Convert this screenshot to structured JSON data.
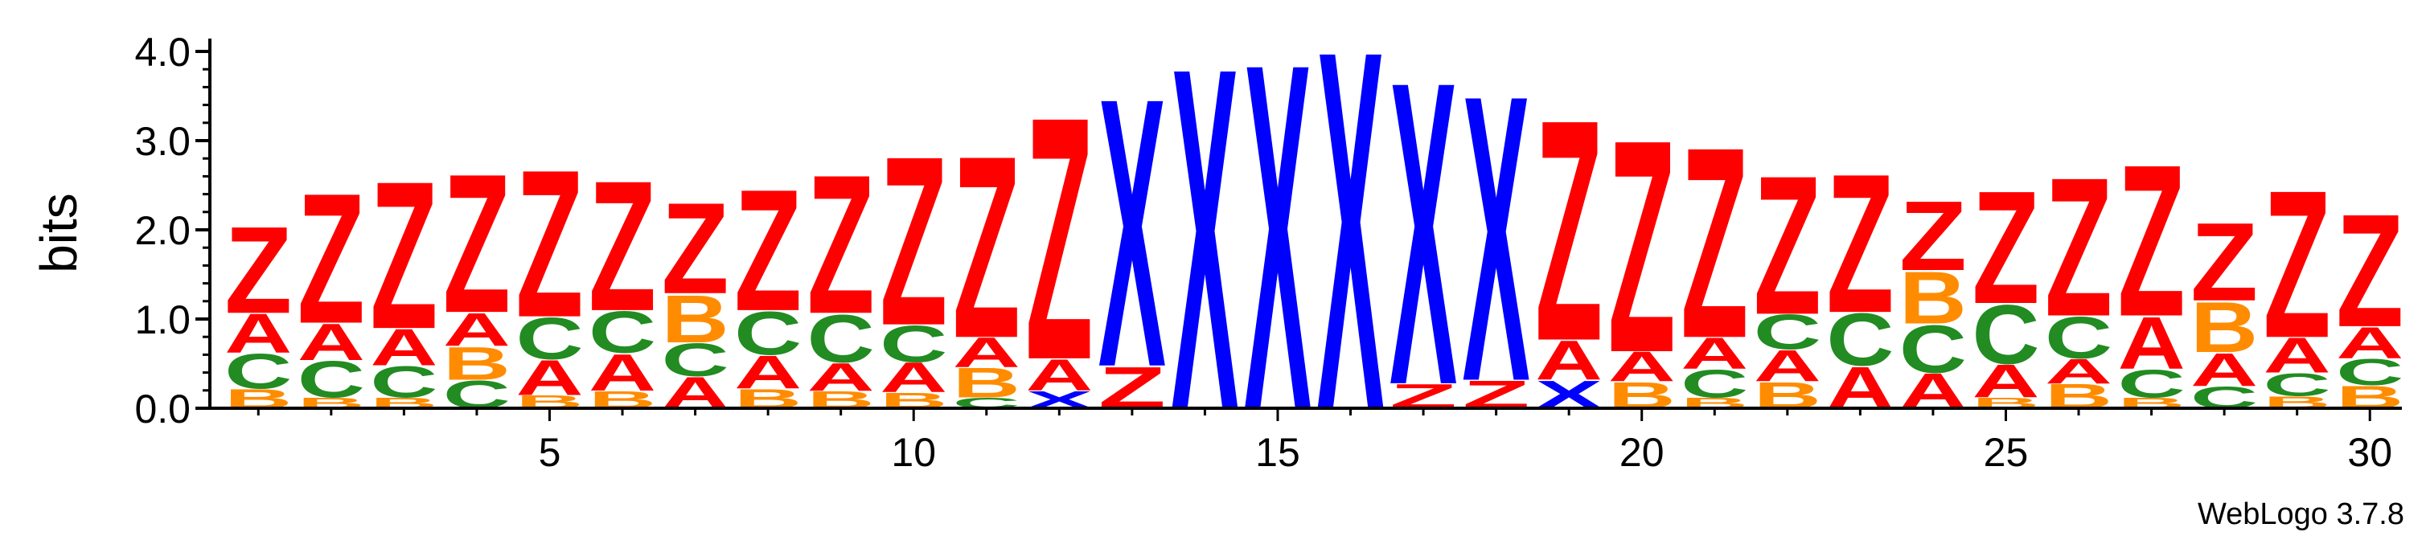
{
  "chart_data": {
    "type": "sequence-logo",
    "ylabel": "bits",
    "ylim": [
      0,
      4.0
    ],
    "y_ticks": [
      "0.0",
      "1.0",
      "2.0",
      "3.0",
      "4.0"
    ],
    "x_ticks": [
      "5",
      "10",
      "15",
      "20",
      "25",
      "30"
    ],
    "x_tick_positions": [
      5,
      10,
      15,
      20,
      25,
      30
    ],
    "credit": "WebLogo 3.7.8",
    "colors": {
      "Z": "#ff0000",
      "A": "#ff0000",
      "C": "#228b22",
      "B": "#ff8c00",
      "X": "#0000ff"
    },
    "positions": [
      {
        "pos": 1,
        "stack": [
          [
            "B",
            0.22
          ],
          [
            "C",
            0.4
          ],
          [
            "A",
            0.45
          ],
          [
            "Z",
            1.0
          ]
        ]
      },
      {
        "pos": 2,
        "stack": [
          [
            "B",
            0.12
          ],
          [
            "C",
            0.42
          ],
          [
            "A",
            0.42
          ],
          [
            "Z",
            1.5
          ]
        ]
      },
      {
        "pos": 3,
        "stack": [
          [
            "B",
            0.12
          ],
          [
            "C",
            0.36
          ],
          [
            "A",
            0.42
          ],
          [
            "Z",
            1.7
          ]
        ]
      },
      {
        "pos": 4,
        "stack": [
          [
            "C",
            0.32
          ],
          [
            "B",
            0.38
          ],
          [
            "A",
            0.38
          ],
          [
            "Z",
            1.6
          ]
        ]
      },
      {
        "pos": 5,
        "stack": [
          [
            "B",
            0.15
          ],
          [
            "A",
            0.4
          ],
          [
            "C",
            0.48
          ],
          [
            "Z",
            1.7
          ]
        ]
      },
      {
        "pos": 6,
        "stack": [
          [
            "B",
            0.2
          ],
          [
            "A",
            0.42
          ],
          [
            "C",
            0.48
          ],
          [
            "Z",
            1.5
          ]
        ]
      },
      {
        "pos": 7,
        "stack": [
          [
            "A",
            0.36
          ],
          [
            "C",
            0.38
          ],
          [
            "B",
            0.55
          ],
          [
            "Z",
            1.05
          ]
        ]
      },
      {
        "pos": 8,
        "stack": [
          [
            "B",
            0.22
          ],
          [
            "A",
            0.38
          ],
          [
            "C",
            0.5
          ],
          [
            "Z",
            1.4
          ]
        ]
      },
      {
        "pos": 9,
        "stack": [
          [
            "B",
            0.2
          ],
          [
            "A",
            0.32
          ],
          [
            "C",
            0.55
          ],
          [
            "Z",
            1.6
          ]
        ]
      },
      {
        "pos": 10,
        "stack": [
          [
            "B",
            0.18
          ],
          [
            "A",
            0.34
          ],
          [
            "C",
            0.42
          ],
          [
            "Z",
            1.95
          ]
        ]
      },
      {
        "pos": 11,
        "stack": [
          [
            "C",
            0.12
          ],
          [
            "B",
            0.34
          ],
          [
            "A",
            0.34
          ],
          [
            "Z",
            2.1
          ]
        ]
      },
      {
        "pos": 12,
        "stack": [
          [
            "X",
            0.2
          ],
          [
            "A",
            0.36
          ],
          [
            "Z",
            2.8
          ]
        ]
      },
      {
        "pos": 13,
        "stack": [
          [
            "Z",
            0.48
          ],
          [
            "X",
            3.1
          ]
        ]
      },
      {
        "pos": 14,
        "stack": [
          [
            "X",
            3.95
          ]
        ]
      },
      {
        "pos": 15,
        "stack": [
          [
            "X",
            4.0
          ]
        ]
      },
      {
        "pos": 16,
        "stack": [
          [
            "X",
            4.15
          ]
        ]
      },
      {
        "pos": 17,
        "stack": [
          [
            "Z",
            0.28
          ],
          [
            "X",
            3.5
          ]
        ]
      },
      {
        "pos": 18,
        "stack": [
          [
            "Z",
            0.32
          ],
          [
            "X",
            3.3
          ]
        ]
      },
      {
        "pos": 19,
        "stack": [
          [
            "X",
            0.32
          ],
          [
            "A",
            0.45
          ],
          [
            "Z",
            2.55
          ]
        ]
      },
      {
        "pos": 20,
        "stack": [
          [
            "B",
            0.3
          ],
          [
            "A",
            0.34
          ],
          [
            "Z",
            2.45
          ]
        ]
      },
      {
        "pos": 21,
        "stack": [
          [
            "B",
            0.12
          ],
          [
            "C",
            0.32
          ],
          [
            "A",
            0.36
          ],
          [
            "Z",
            2.2
          ]
        ]
      },
      {
        "pos": 22,
        "stack": [
          [
            "B",
            0.3
          ],
          [
            "A",
            0.36
          ],
          [
            "C",
            0.4
          ],
          [
            "Z",
            1.6
          ]
        ]
      },
      {
        "pos": 23,
        "stack": [
          [
            "A",
            0.48
          ],
          [
            "C",
            0.6
          ],
          [
            "Z",
            1.6
          ]
        ]
      },
      {
        "pos": 24,
        "stack": [
          [
            "A",
            0.4
          ],
          [
            "C",
            0.55
          ],
          [
            "B",
            0.6
          ],
          [
            "Z",
            0.8
          ]
        ]
      },
      {
        "pos": 25,
        "stack": [
          [
            "B",
            0.12
          ],
          [
            "A",
            0.38
          ],
          [
            "C",
            0.68
          ],
          [
            "Z",
            1.3
          ]
        ]
      },
      {
        "pos": 26,
        "stack": [
          [
            "B",
            0.28
          ],
          [
            "A",
            0.28
          ],
          [
            "C",
            0.48
          ],
          [
            "Z",
            1.6
          ]
        ]
      },
      {
        "pos": 27,
        "stack": [
          [
            "B",
            0.12
          ],
          [
            "C",
            0.32
          ],
          [
            "A",
            0.6
          ],
          [
            "Z",
            1.75
          ]
        ]
      },
      {
        "pos": 28,
        "stack": [
          [
            "C",
            0.25
          ],
          [
            "A",
            0.38
          ],
          [
            "B",
            0.58
          ],
          [
            "Z",
            0.9
          ]
        ]
      },
      {
        "pos": 29,
        "stack": [
          [
            "B",
            0.14
          ],
          [
            "C",
            0.26
          ],
          [
            "A",
            0.4
          ],
          [
            "Z",
            1.7
          ]
        ]
      },
      {
        "pos": 30,
        "stack": [
          [
            "B",
            0.26
          ],
          [
            "C",
            0.3
          ],
          [
            "A",
            0.36
          ],
          [
            "Z",
            1.3
          ]
        ]
      }
    ]
  }
}
